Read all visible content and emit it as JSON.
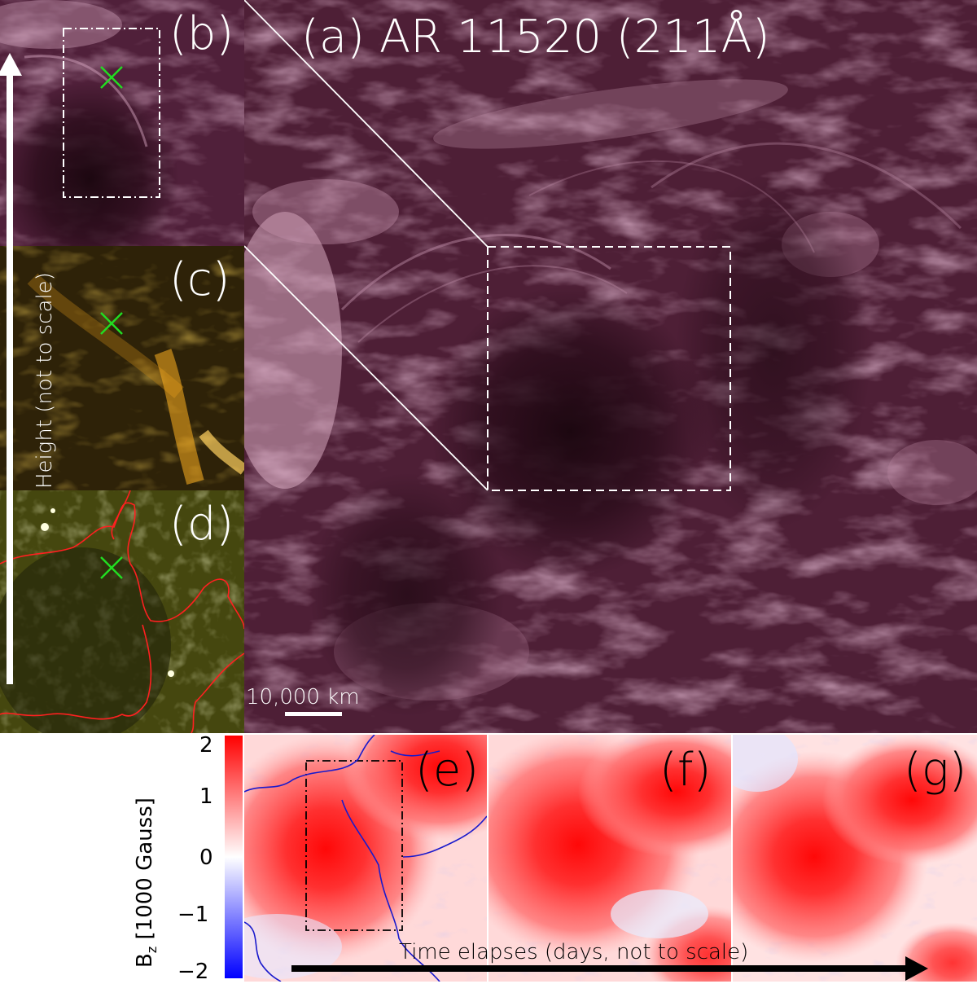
{
  "panels": {
    "a": {
      "label": "(a) AR 11520 (211Å)"
    },
    "b": {
      "label": "(b)"
    },
    "c": {
      "label": "(c)"
    },
    "d": {
      "label": "(d)"
    },
    "e": {
      "label": "(e)"
    },
    "f": {
      "label": "(f)"
    },
    "g": {
      "label": "(g)"
    }
  },
  "scale_bar": {
    "label": "10,000 km"
  },
  "height_arrow": {
    "label": "Height (not to scale)"
  },
  "time_arrow": {
    "label": "Time elapses (days, not to scale)"
  },
  "colorbar": {
    "label_main": "B",
    "label_sub": "z",
    "label_rest": " [1000 Gauss]",
    "ticks": [
      "2",
      "1",
      "0",
      "−1",
      "−2"
    ],
    "colors": {
      "top": "#ff0000",
      "mid": "#ffffff",
      "bottom": "#0000ff"
    }
  },
  "colors": {
    "aia211": "#4a1c32",
    "aia171": "#3a2a08",
    "photosphere": "#3d3f10",
    "contour_red": "#ff2020",
    "contour_blue": "#1a1acc",
    "marker_green": "#22dd22"
  }
}
